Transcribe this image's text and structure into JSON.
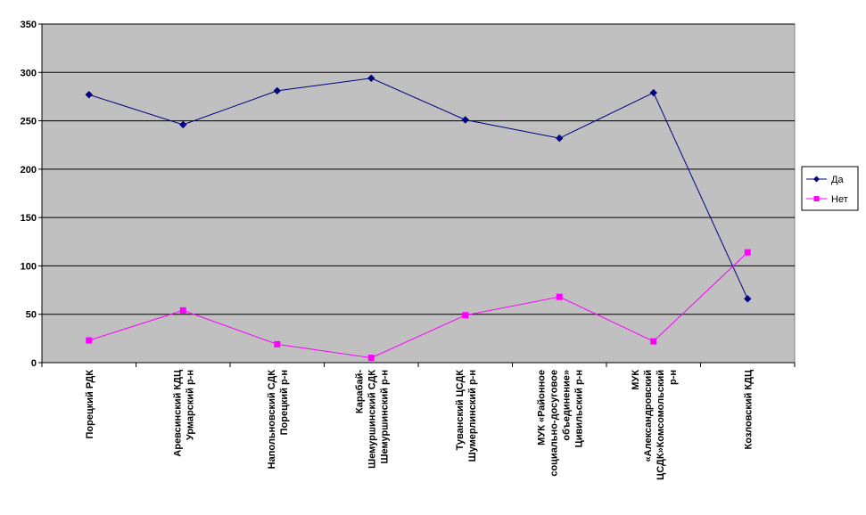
{
  "chart_data": {
    "type": "line",
    "categories": [
      [
        "Порецкий РДК"
      ],
      [
        "Аревсинский КДЦ",
        "Урмарский р-н"
      ],
      [
        "Напольновский СДК",
        "Порецкий р-н"
      ],
      [
        "Карабай-",
        "Шемуршинский СДК",
        "Шемуршинский р-н"
      ],
      [
        "Туванский ЦСДК",
        "Шумерлинский р-н"
      ],
      [
        "МУК «Районное",
        "социально-досуговое",
        "объединение»",
        "Цивильский р-н"
      ],
      [
        "МУК",
        "«Александровский",
        "ЦСДК»Комсомольский",
        "р-н"
      ],
      [
        "Козловский КДЦ"
      ]
    ],
    "ylim": [
      0,
      350
    ],
    "yticks": [
      0,
      50,
      100,
      150,
      200,
      250,
      300,
      350
    ],
    "grid": true,
    "legend_position": "right",
    "series": [
      {
        "name": "Да",
        "color": "#000080",
        "marker": "diamond",
        "values": [
          277,
          246,
          281,
          294,
          251,
          232,
          279,
          66
        ]
      },
      {
        "name": "Нет",
        "color": "#ff00ff",
        "marker": "square",
        "values": [
          23,
          54,
          19,
          5,
          49,
          68,
          22,
          114
        ]
      }
    ],
    "plot_background": "#c0c0c0"
  }
}
